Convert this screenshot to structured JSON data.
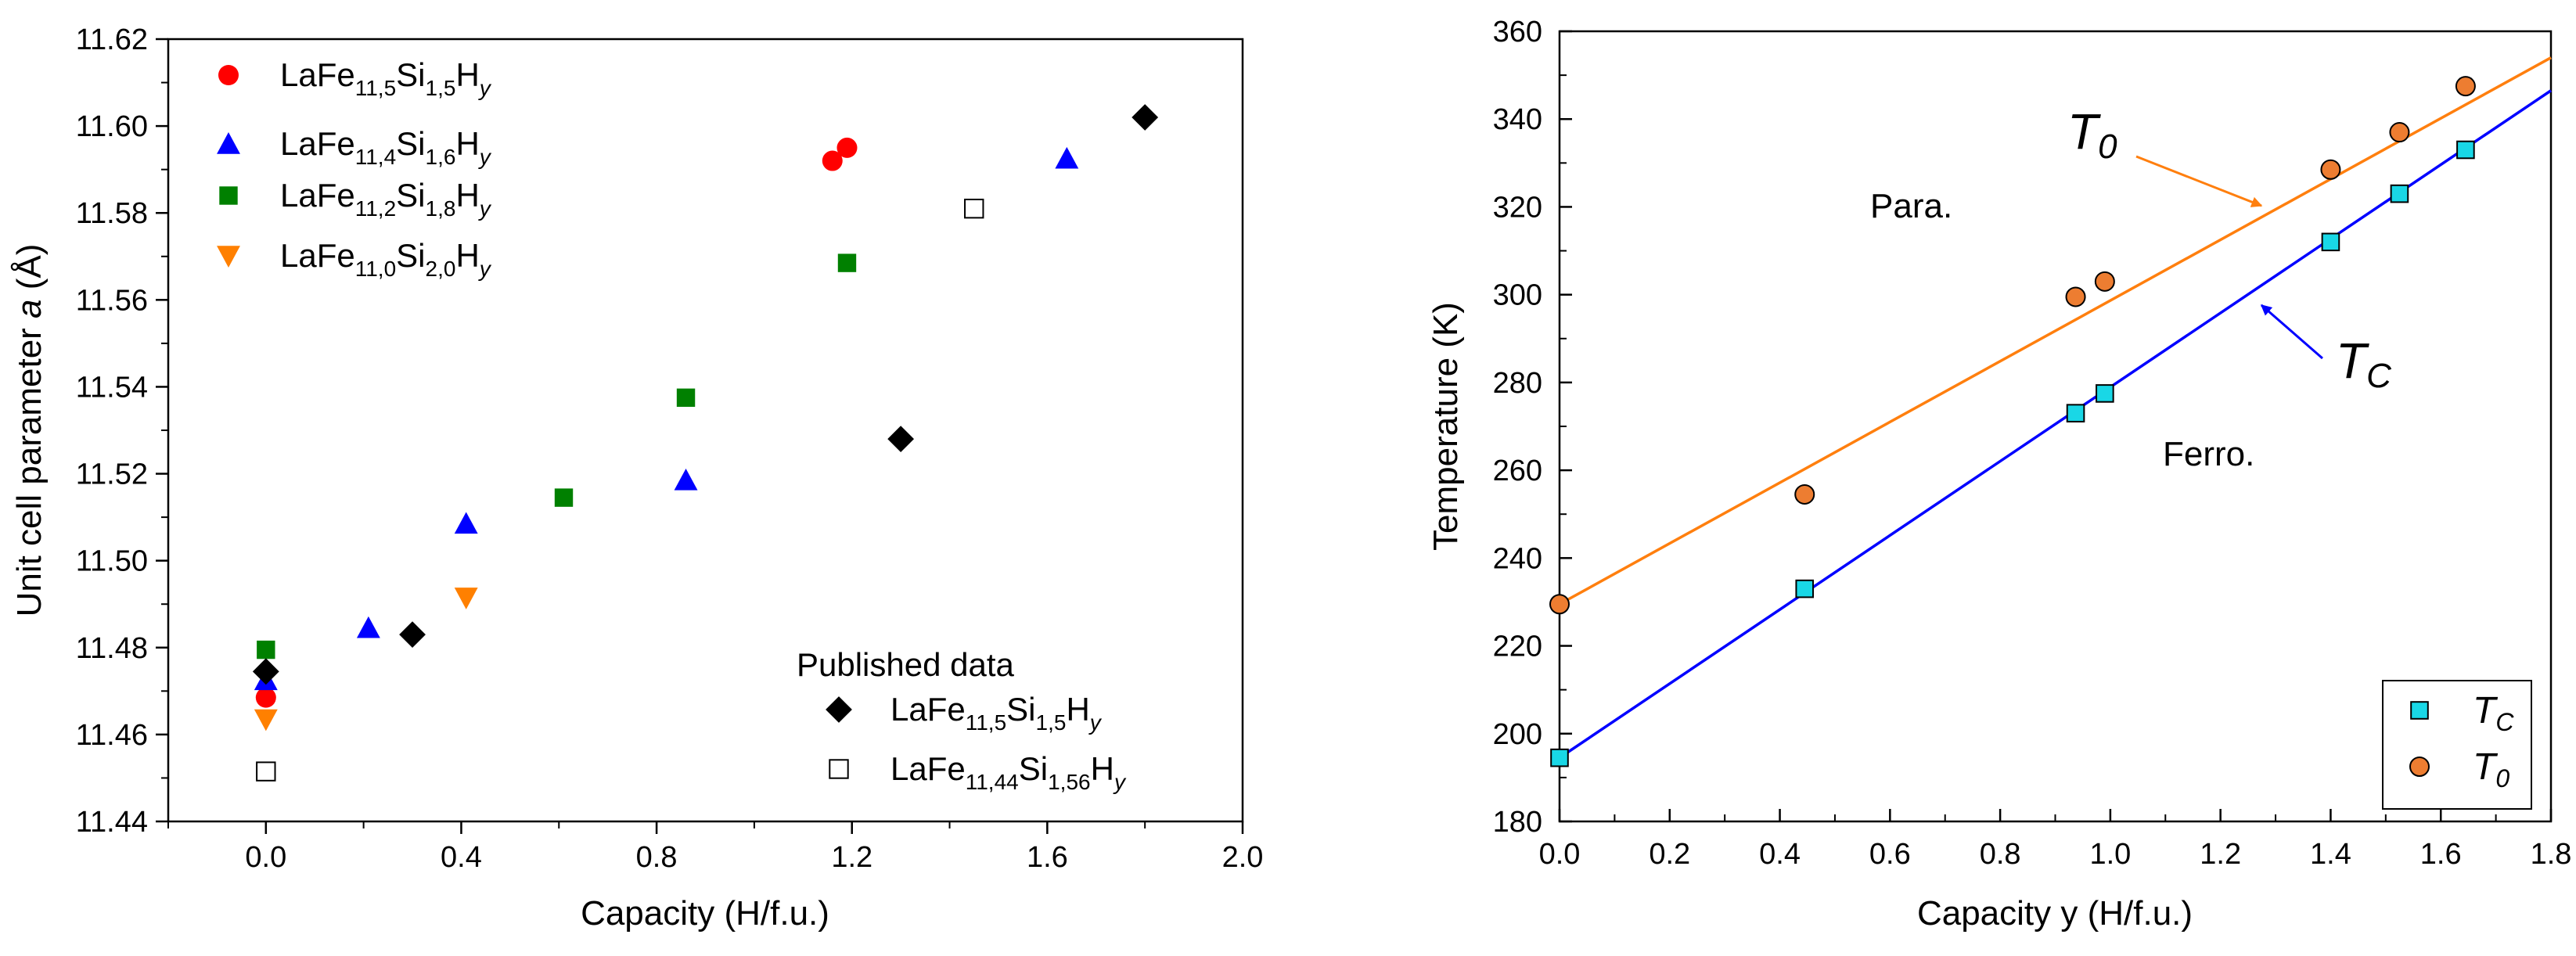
{
  "chart_data": [
    {
      "type": "scatter",
      "xlabel": "Capacity (H/f.u.)",
      "ylabel_parts": [
        "Unit cell parameter ",
        "a",
        " (Å)"
      ],
      "xlim": [
        -0.2,
        2.0
      ],
      "ylim": [
        11.44,
        11.62
      ],
      "xticks": [
        "0.0",
        "0.4",
        "0.8",
        "1.2",
        "1.6",
        "2.0"
      ],
      "xtick_values": [
        0.0,
        0.4,
        0.8,
        1.2,
        1.6,
        2.0
      ],
      "yticks": [
        "11.44",
        "11.46",
        "11.48",
        "11.50",
        "11.52",
        "11.54",
        "11.56",
        "11.58",
        "11.60",
        "11.62"
      ],
      "ytick_values": [
        11.44,
        11.46,
        11.48,
        11.5,
        11.52,
        11.54,
        11.56,
        11.58,
        11.6,
        11.62
      ],
      "legend_heading": "Published data",
      "series": [
        {
          "name": "LaFe11,5Si1,5Hy",
          "parts": [
            "LaFe",
            "11,5",
            "Si",
            "1,5",
            "H",
            "y"
          ],
          "marker": "circle",
          "color": "#ff0000",
          "x": [
            0.0,
            1.16,
            1.19
          ],
          "y": [
            11.4685,
            11.592,
            11.595
          ],
          "group": "main"
        },
        {
          "name": "LaFe11,4Si1,6Hy",
          "parts": [
            "LaFe",
            "11,4",
            "Si",
            "1,6",
            "H",
            "y"
          ],
          "marker": "triangle-up",
          "color": "#0000ff",
          "x": [
            0.0,
            0.21,
            0.41,
            0.86,
            1.64
          ],
          "y": [
            11.4725,
            11.4845,
            11.5085,
            11.5185,
            11.5925
          ],
          "group": "main"
        },
        {
          "name": "LaFe11,2Si1,8Hy",
          "parts": [
            "LaFe",
            "11,2",
            "Si",
            "1,8",
            "H",
            "y"
          ],
          "marker": "square",
          "color": "#008000",
          "x": [
            0.0,
            0.61,
            0.86,
            1.19
          ],
          "y": [
            11.4795,
            11.5145,
            11.5375,
            11.5685
          ],
          "group": "main"
        },
        {
          "name": "LaFe11,0Si2,0Hy",
          "parts": [
            "LaFe",
            "11,0",
            "Si",
            "2,0",
            "H",
            "y"
          ],
          "marker": "triangle-down",
          "color": "#ff8000",
          "x": [
            0.0,
            0.41
          ],
          "y": [
            11.4635,
            11.4915
          ],
          "group": "main"
        },
        {
          "name": "LaFe11,5Si1,5Hy",
          "parts": [
            "LaFe",
            "11,5",
            "Si",
            "1,5",
            "H",
            "y"
          ],
          "marker": "diamond",
          "color": "#000000",
          "x": [
            0.0,
            0.3,
            1.3,
            1.8
          ],
          "y": [
            11.4745,
            11.483,
            11.528,
            11.602
          ],
          "group": "published"
        },
        {
          "name": "LaFe11,44Si1,56Hy",
          "parts": [
            "LaFe",
            "11,44",
            "Si",
            "1,56",
            "H",
            "y"
          ],
          "marker": "open-square",
          "color": "#000000",
          "x": [
            0.0,
            1.45
          ],
          "y": [
            11.4515,
            11.581
          ],
          "group": "published"
        }
      ]
    },
    {
      "type": "scatter",
      "xlabel": "Capacity y (H/f.u.)",
      "ylabel": "Temperature (K)",
      "xlim": [
        0.0,
        1.8
      ],
      "ylim": [
        180,
        360
      ],
      "xticks": [
        "0.0",
        "0.2",
        "0.4",
        "0.6",
        "0.8",
        "1.0",
        "1.2",
        "1.4",
        "1.6",
        "1.8"
      ],
      "xtick_values": [
        0.0,
        0.2,
        0.4,
        0.6,
        0.8,
        1.0,
        1.2,
        1.4,
        1.6,
        1.8
      ],
      "yticks": [
        "180",
        "200",
        "220",
        "240",
        "260",
        "280",
        "300",
        "320",
        "340",
        "360"
      ],
      "ytick_values": [
        180,
        200,
        220,
        240,
        260,
        280,
        300,
        320,
        340,
        360
      ],
      "series": [
        {
          "name": "TC",
          "label_main": "T",
          "label_sub": "C",
          "marker": "square",
          "color": "#19d7e6",
          "x": [
            0.0,
            0.445,
            0.937,
            0.99,
            1.4,
            1.525,
            1.645
          ],
          "y": [
            194.5,
            233,
            273,
            277.5,
            312,
            323,
            333
          ],
          "fit": {
            "x": [
              0.0,
              1.8
            ],
            "y": [
              194.5,
              346.5
            ],
            "color": "#0000ff"
          }
        },
        {
          "name": "T0",
          "label_main": "T",
          "label_sub": "0",
          "marker": "circle",
          "color": "#ed7d31",
          "x": [
            0.0,
            0.445,
            0.937,
            0.99,
            1.4,
            1.525,
            1.645
          ],
          "y": [
            229.5,
            254.5,
            299.5,
            303,
            328.5,
            337,
            347.5
          ],
          "fit": {
            "x": [
              0.0,
              1.8
            ],
            "y": [
              229.5,
              354
            ],
            "color": "#ff7f0e"
          }
        }
      ],
      "annotations": {
        "para": "Para.",
        "ferro": "Ferro.",
        "t0_main": "T",
        "t0_sub": "0",
        "tc_main": "T",
        "tc_sub": "C"
      }
    }
  ]
}
